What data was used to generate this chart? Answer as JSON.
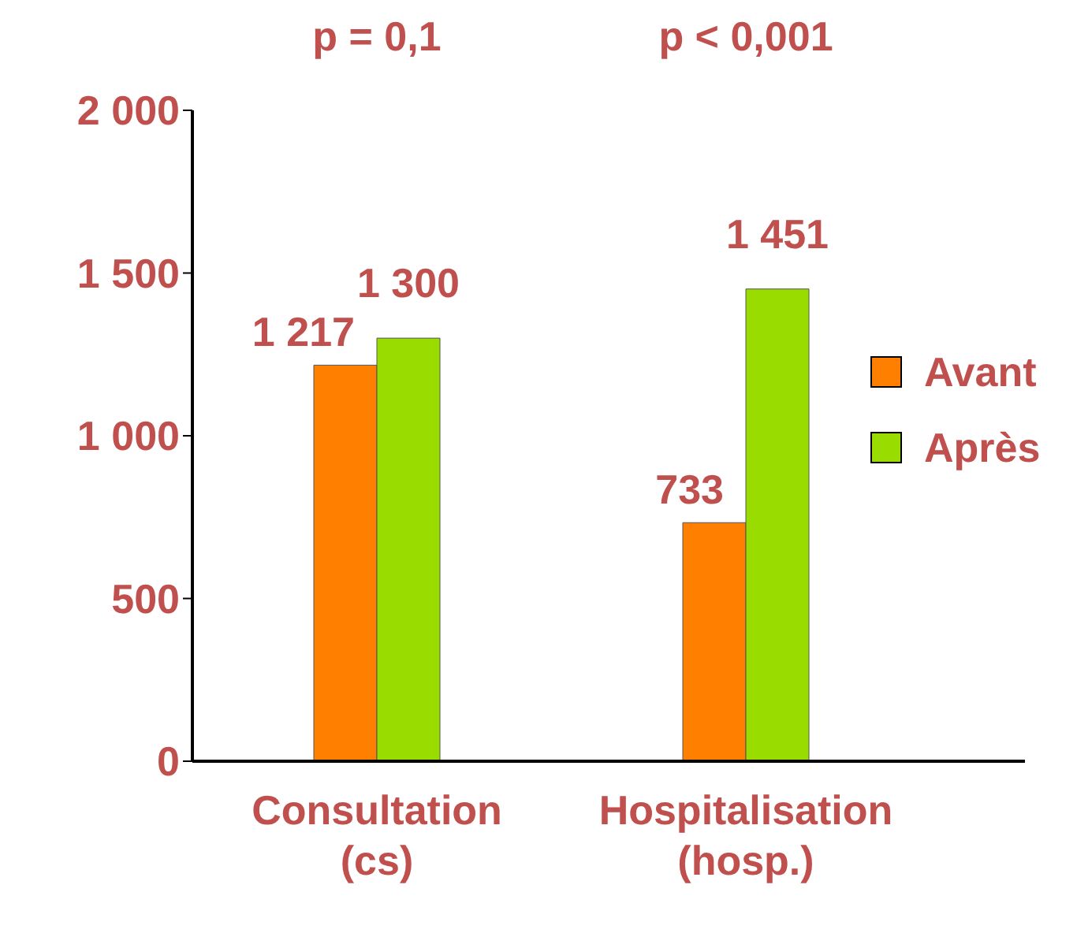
{
  "chart_data": {
    "type": "bar",
    "categories": [
      "Consultation\n(cs)",
      "Hospitalisation\n(hosp.)"
    ],
    "series": [
      {
        "name": "Avant",
        "color": "#ff7f00",
        "values": [
          1217,
          733
        ],
        "value_labels": [
          "1 217",
          "733"
        ]
      },
      {
        "name": "Après",
        "color": "#99dd00",
        "values": [
          1300,
          1451
        ],
        "value_labels": [
          "1 300",
          "1 451"
        ]
      }
    ],
    "ylim": [
      0,
      2000
    ],
    "yticks": [
      {
        "value": 0,
        "label": "0"
      },
      {
        "value": 500,
        "label": "500"
      },
      {
        "value": 1000,
        "label": "1 000"
      },
      {
        "value": 1500,
        "label": "1 500"
      },
      {
        "value": 2000,
        "label": "2 000"
      }
    ],
    "annotations": [
      "p = 0,1",
      "p < 0,001"
    ],
    "legend": "right",
    "grid": false
  }
}
